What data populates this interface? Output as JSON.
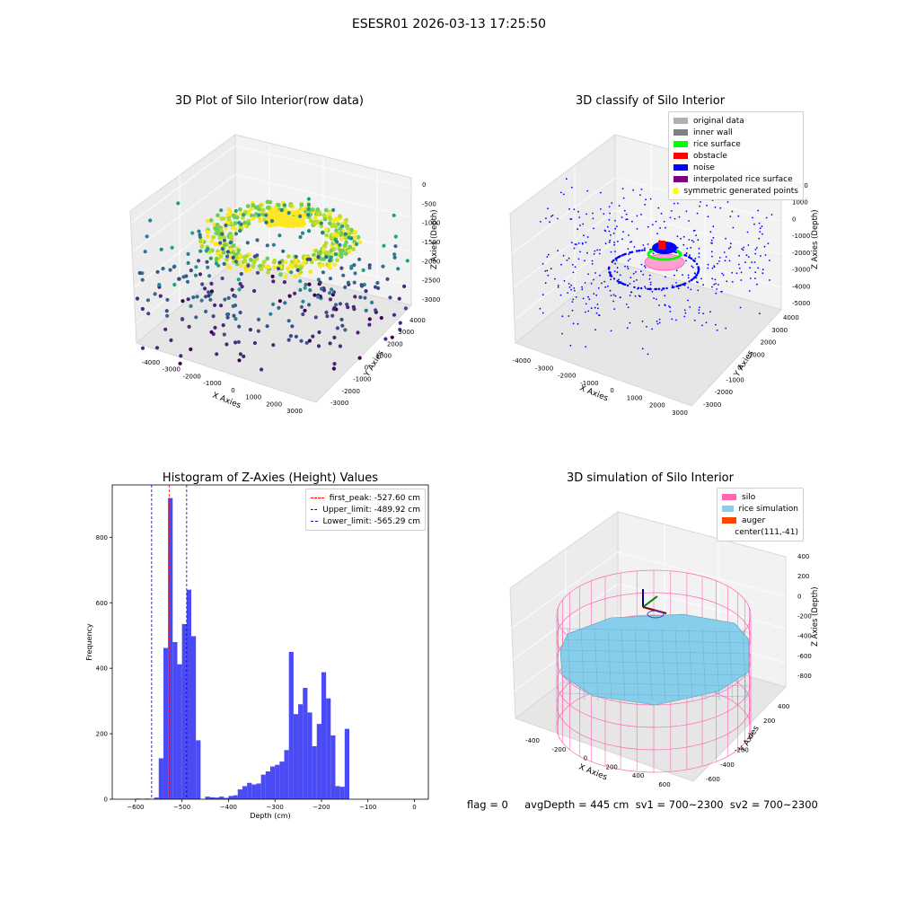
{
  "figure": {
    "suptitle": "ESESR01 2026-03-13 17:25:50",
    "status_line": "flag = 0     avgDepth = 445 cm  sv1 = 700~2300  sv2 = 700~2300"
  },
  "colors": {
    "bar": "#4b4bf5",
    "first_peak_line": "#ff0000",
    "limit_lines": "#0000aa",
    "original_data": "#b0b0b0",
    "inner_wall": "#808080",
    "rice_surface": "#00ff00",
    "obstacle": "#ff0000",
    "noise": "#0000ff",
    "interpolated": "#800080",
    "symmetric": "#ffff00",
    "silo": "#ff69b4",
    "rice_simulation": "#87ceeb",
    "auger": "#ff4500"
  },
  "chart_data": [
    {
      "type": "scatter",
      "projection": "3d",
      "title": "3D Plot of Silo Interior(row data)",
      "xlabel": "X Axies",
      "ylabel": "Y Axies",
      "zlabel": "Z Axies (Depth)",
      "xticks": [
        "-4000",
        "-3000",
        "-2000",
        "-1000",
        "0",
        "1000",
        "2000",
        "3000"
      ],
      "yticks": [
        "-3000",
        "-2000",
        "-1000",
        "0",
        "1000",
        "2000",
        "3000",
        "4000"
      ],
      "zticks": [
        "-3000",
        "-2500",
        "-2000",
        "-1500",
        "-1000",
        "-500",
        "0"
      ],
      "colormap": "viridis"
    },
    {
      "type": "scatter",
      "projection": "3d",
      "title": "3D classify of Silo Interior",
      "xlabel": "X Axies",
      "ylabel": "Y Axies",
      "zlabel": "Z Axies (Depth)",
      "xticks": [
        "-4000",
        "-3000",
        "-2000",
        "-1000",
        "0",
        "1000",
        "2000",
        "3000"
      ],
      "yticks": [
        "-3000",
        "-2000",
        "-1000",
        "0",
        "1000",
        "2000",
        "3000",
        "4000"
      ],
      "zticks": [
        "-5000",
        "-4000",
        "-3000",
        "-2000",
        "-1000",
        "0",
        "1000",
        "2000"
      ],
      "legend": [
        "original data",
        "inner wall",
        "rice surface",
        "obstacle",
        "noise",
        "interpolated rice surface",
        "symmetric generated points"
      ],
      "legend_placement": "top-right"
    },
    {
      "type": "bar",
      "title": "Histogram of Z-Axies (Height) Values",
      "xlabel": "Depth (cm)",
      "ylabel": "Frequency",
      "xlim": [
        -650,
        30
      ],
      "ylim": [
        0,
        960
      ],
      "xticks": [
        -600,
        -500,
        -400,
        -300,
        -200,
        -100,
        0
      ],
      "yticks": [
        0,
        200,
        400,
        600,
        800
      ],
      "bin_width": 10,
      "bin_starts": [
        -600,
        -590,
        -580,
        -570,
        -560,
        -550,
        -540,
        -530,
        -520,
        -510,
        -500,
        -490,
        -480,
        -470,
        -460,
        -450,
        -440,
        -430,
        -420,
        -410,
        -400,
        -390,
        -380,
        -370,
        -360,
        -350,
        -340,
        -330,
        -320,
        -310,
        -300,
        -290,
        -280,
        -270,
        -260,
        -250,
        -240,
        -230,
        -220,
        -210,
        -200,
        -190,
        -180,
        -170,
        -160,
        -150,
        -140,
        -130,
        -120,
        -110,
        -100,
        -90,
        -80,
        -70,
        -60,
        -50,
        -40,
        -30,
        -20,
        -10
      ],
      "values": [
        2,
        1,
        2,
        0,
        5,
        125,
        462,
        920,
        480,
        412,
        535,
        640,
        498,
        180,
        0,
        8,
        6,
        5,
        8,
        4,
        10,
        12,
        30,
        40,
        50,
        45,
        48,
        75,
        85,
        100,
        105,
        115,
        150,
        450,
        260,
        290,
        340,
        265,
        162,
        230,
        388,
        308,
        195,
        40,
        38,
        215,
        0,
        0,
        0,
        0,
        0,
        0,
        0,
        0,
        0,
        0,
        0,
        0,
        0,
        0
      ],
      "vlines": [
        {
          "label": "first_peak: -527.60 cm",
          "x": -527.6,
          "style": "dashed",
          "color": "#ff0000"
        },
        {
          "label": "Upper_limit: -489.92 cm",
          "x": -489.92,
          "style": "dashed",
          "color": "#0000aa"
        },
        {
          "label": "Lower_limit: -565.29 cm",
          "x": -565.29,
          "style": "dashed",
          "color": "#0000aa"
        }
      ],
      "legend_placement": "top-right"
    },
    {
      "type": "surface",
      "projection": "3d",
      "title": "3D simulation of Silo Interior",
      "xlabel": "X Axies",
      "ylabel": "Y Axies",
      "zlabel": "Z Axies (Depth)",
      "xticks": [
        "-400",
        "-200",
        "0",
        "200",
        "400",
        "600"
      ],
      "yticks": [
        "-600",
        "-400",
        "-200",
        "0",
        "200",
        "400"
      ],
      "zticks": [
        "-800",
        "-600",
        "-400",
        "-200",
        "0",
        "200",
        "400"
      ],
      "legend": [
        "silo",
        "rice simulation",
        "auger",
        "center(111,-41)"
      ],
      "legend_placement": "top-right"
    }
  ]
}
